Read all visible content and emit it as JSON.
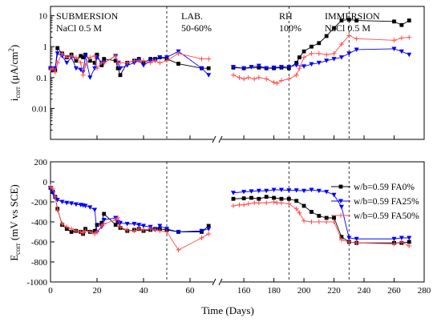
{
  "chart_data": [
    {
      "id": "top",
      "type": "line",
      "yscale": "log",
      "ylim": [
        0.001,
        20
      ],
      "yticks": [
        10,
        1,
        0.1,
        0.01
      ],
      "ytick_labels": [
        "10",
        "1",
        "0.1",
        "0.01"
      ],
      "ylabel_main": "i",
      "ylabel_sub": "corr",
      "ylabel_unit": " (μA/cm",
      "ylabel_sup": "2",
      "ylabel_close": ")",
      "regions": [
        {
          "line1": "SUBMERSION",
          "line2": "NaCl 0.5 M"
        },
        {
          "line1": "LAB.",
          "line2": "50-60%"
        },
        {
          "line1": "RH",
          "line2": "100%"
        },
        {
          "line1": "IMMERSION",
          "line2": "NaCl 0.5 M"
        }
      ],
      "series": [
        {
          "color": "#000000",
          "marker": "square",
          "x": [
            0,
            1,
            2,
            3,
            5,
            7,
            9,
            11,
            13,
            14,
            15,
            17,
            19,
            20,
            22,
            23,
            28,
            29,
            30,
            33,
            36,
            38,
            40,
            43,
            45,
            47,
            50,
            55,
            65,
            68,
            153,
            160,
            170,
            175,
            180,
            185,
            190,
            195,
            197,
            200,
            205,
            210,
            215,
            220,
            225,
            230,
            235,
            260,
            265,
            270
          ],
          "y": [
            0.2,
            0.17,
            0.18,
            0.9,
            0.6,
            0.45,
            0.55,
            0.35,
            0.5,
            0.45,
            0.55,
            0.35,
            0.3,
            0.55,
            0.25,
            0.4,
            0.35,
            0.2,
            0.12,
            0.3,
            0.35,
            0.4,
            0.3,
            0.4,
            0.4,
            0.45,
            0.4,
            0.28,
            0.2,
            0.2,
            0.21,
            0.2,
            0.21,
            0.2,
            0.2,
            0.21,
            0.2,
            0.3,
            0.45,
            0.7,
            1.0,
            1.3,
            2.2,
            4,
            7,
            7.5,
            7,
            6.5,
            5,
            7
          ]
        },
        {
          "color": "#0000ff",
          "marker": "triangle-down",
          "x": [
            0,
            1,
            2,
            3,
            5,
            7,
            9,
            11,
            13,
            14,
            15,
            17,
            19,
            20,
            22,
            23,
            28,
            29,
            30,
            33,
            36,
            38,
            40,
            43,
            45,
            47,
            50,
            55,
            65,
            68,
            153,
            160,
            165,
            170,
            175,
            180,
            185,
            190,
            195,
            200,
            205,
            210,
            215,
            220,
            225,
            230,
            235,
            260,
            265,
            270
          ],
          "y": [
            0.2,
            0.18,
            0.2,
            0.6,
            0.5,
            0.3,
            0.45,
            0.2,
            0.18,
            0.15,
            0.5,
            0.1,
            0.2,
            0.45,
            0.3,
            0.3,
            0.5,
            0.3,
            0.2,
            0.25,
            0.3,
            0.35,
            0.25,
            0.35,
            0.35,
            0.45,
            0.45,
            0.7,
            0.2,
            0.12,
            0.22,
            0.2,
            0.22,
            0.24,
            0.2,
            0.21,
            0.22,
            0.22,
            0.25,
            0.23,
            0.27,
            0.3,
            0.35,
            0.4,
            0.45,
            0.6,
            0.8,
            0.85,
            0.7,
            0.55
          ]
        },
        {
          "color": "#ff4d4d",
          "marker": "plus",
          "x": [
            0,
            1,
            2,
            3,
            5,
            7,
            9,
            11,
            13,
            14,
            15,
            17,
            19,
            20,
            22,
            23,
            28,
            29,
            30,
            33,
            36,
            38,
            40,
            43,
            45,
            47,
            50,
            55,
            65,
            68,
            153,
            157,
            160,
            163,
            167,
            170,
            175,
            180,
            182,
            185,
            190,
            195,
            197,
            200,
            205,
            210,
            215,
            220,
            225,
            230,
            235,
            260,
            265,
            270
          ],
          "y": [
            0.18,
            0.2,
            0.15,
            0.3,
            0.6,
            0.45,
            0.5,
            0.45,
            0.3,
            0.12,
            0.25,
            0.45,
            0.5,
            0.2,
            0.3,
            0.3,
            0.5,
            0.3,
            0.3,
            0.3,
            0.35,
            0.35,
            0.35,
            0.3,
            0.35,
            0.3,
            0.35,
            0.6,
            0.4,
            0.4,
            0.12,
            0.1,
            0.09,
            0.1,
            0.09,
            0.1,
            0.09,
            0.07,
            0.065,
            0.08,
            0.09,
            0.12,
            0.2,
            0.45,
            0.6,
            0.6,
            0.55,
            0.6,
            1.2,
            2.3,
            1.8,
            1.6,
            1.9,
            2.0
          ]
        }
      ]
    },
    {
      "id": "bottom",
      "type": "line",
      "yscale": "linear",
      "ylim": [
        -1000,
        200
      ],
      "yticks": [
        200,
        0,
        -200,
        -400,
        -600,
        -800,
        -1000
      ],
      "ytick_labels": [
        "200",
        "0",
        "-200",
        "-400",
        "-600",
        "-800",
        "-1000"
      ],
      "ylabel_main": "E",
      "ylabel_sub": "corr",
      "ylabel_unit": " (mV vs  SCE)",
      "xlabel": "Time (Days)",
      "xticks_left": [
        0,
        20,
        40,
        60
      ],
      "xtick_labels_left": [
        "0",
        "20",
        "40",
        "60"
      ],
      "xticks_right": [
        160,
        180,
        200,
        220,
        240,
        260,
        280
      ],
      "xtick_labels_right": [
        "160",
        "180",
        "200",
        "220",
        "240",
        "260",
        "280"
      ],
      "legend_position": "right",
      "series": [
        {
          "name": "w/b=0.59 FA0%",
          "color": "#000000",
          "marker": "square",
          "x": [
            0,
            1,
            2,
            3,
            5,
            7,
            9,
            11,
            13,
            14,
            15,
            17,
            19,
            20,
            22,
            23,
            28,
            29,
            30,
            33,
            36,
            38,
            40,
            43,
            45,
            47,
            50,
            55,
            65,
            68,
            153,
            160,
            165,
            170,
            175,
            180,
            185,
            190,
            195,
            200,
            205,
            210,
            215,
            220,
            225,
            230,
            235,
            260,
            265,
            270
          ],
          "y": [
            -60,
            -100,
            -150,
            -270,
            -430,
            -470,
            -500,
            -490,
            -500,
            -520,
            -470,
            -500,
            -490,
            -430,
            -410,
            -320,
            -430,
            -400,
            -460,
            -490,
            -480,
            -470,
            -490,
            -480,
            -470,
            -470,
            -480,
            -500,
            -500,
            -440,
            -170,
            -165,
            -160,
            -170,
            -150,
            -160,
            -170,
            -170,
            -190,
            -240,
            -300,
            -340,
            -360,
            -360,
            -550,
            -600,
            -610,
            -610,
            -610,
            -600
          ]
        },
        {
          "name": "w/b=0.59 FA25%",
          "color": "#0000ff",
          "marker": "triangle-down",
          "x": [
            0,
            1,
            2,
            3,
            5,
            7,
            9,
            11,
            13,
            14,
            15,
            17,
            19,
            20,
            22,
            23,
            28,
            29,
            30,
            33,
            36,
            38,
            40,
            43,
            45,
            47,
            50,
            55,
            65,
            68,
            153,
            160,
            165,
            170,
            175,
            180,
            185,
            190,
            195,
            200,
            205,
            210,
            215,
            220,
            225,
            230,
            235,
            260,
            265,
            270
          ],
          "y": [
            -60,
            -110,
            -160,
            -180,
            -200,
            -210,
            -215,
            -225,
            -230,
            -235,
            -240,
            -255,
            -280,
            -500,
            -450,
            -380,
            -360,
            -400,
            -410,
            -420,
            -420,
            -430,
            -440,
            -450,
            -480,
            -440,
            -470,
            -500,
            -490,
            -470,
            -110,
            -100,
            -95,
            -90,
            -90,
            -80,
            -80,
            -85,
            -85,
            -90,
            -80,
            -90,
            -100,
            -130,
            -250,
            -560,
            -570,
            -570,
            -560,
            -560
          ]
        },
        {
          "name": "w/b=0.59 FA50%",
          "color": "#ff4d4d",
          "marker": "plus",
          "x": [
            0,
            1,
            2,
            3,
            5,
            7,
            9,
            11,
            13,
            14,
            15,
            17,
            19,
            20,
            22,
            23,
            28,
            29,
            30,
            33,
            36,
            38,
            40,
            43,
            45,
            47,
            50,
            55,
            65,
            68,
            153,
            157,
            160,
            163,
            167,
            170,
            175,
            180,
            182,
            185,
            190,
            195,
            197,
            200,
            205,
            210,
            215,
            220,
            225,
            230,
            235,
            260,
            265,
            270
          ],
          "y": [
            -50,
            -70,
            -150,
            -280,
            -420,
            -450,
            -470,
            -490,
            -500,
            -510,
            -490,
            -500,
            -520,
            -500,
            -440,
            -420,
            -380,
            -360,
            -450,
            -480,
            -490,
            -470,
            -480,
            -470,
            -480,
            -490,
            -500,
            -680,
            -560,
            -520,
            -240,
            -230,
            -230,
            -220,
            -210,
            -210,
            -210,
            -200,
            -210,
            -210,
            -220,
            -270,
            -310,
            -390,
            -400,
            -400,
            -400,
            -400,
            -580,
            -600,
            -610,
            -620,
            -600,
            -640
          ]
        }
      ]
    }
  ]
}
